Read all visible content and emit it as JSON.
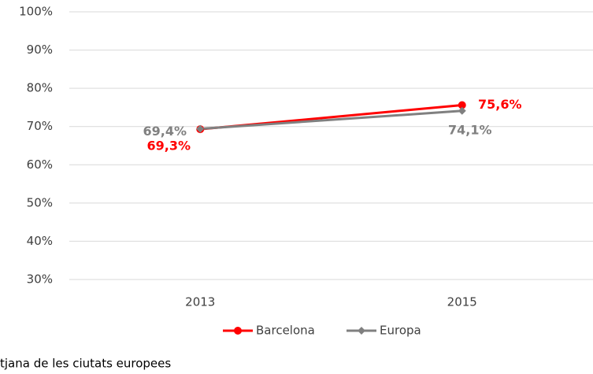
{
  "chart_data": {
    "type": "line",
    "categories": [
      "2013",
      "2015"
    ],
    "series": [
      {
        "name": "Barcelona",
        "color": "#ff0000",
        "values": [
          69.3,
          75.6
        ],
        "value_labels": [
          "69,3%",
          "75,6%"
        ]
      },
      {
        "name": "Europa",
        "color": "#808080",
        "values": [
          69.4,
          74.1
        ],
        "value_labels": [
          "69,4%",
          "74,1%"
        ]
      }
    ],
    "ylim": [
      30,
      100
    ],
    "yticks": [
      {
        "value": 30,
        "label": "30%"
      },
      {
        "value": 40,
        "label": "40%"
      },
      {
        "value": 50,
        "label": "50%"
      },
      {
        "value": 60,
        "label": "60%"
      },
      {
        "value": 70,
        "label": "70%"
      },
      {
        "value": 80,
        "label": "80%"
      },
      {
        "value": 90,
        "label": "90%"
      },
      {
        "value": 100,
        "label": "100%"
      }
    ],
    "grid": true,
    "legend": "bottom",
    "footnote": "tjana de  les ciutats europees"
  }
}
